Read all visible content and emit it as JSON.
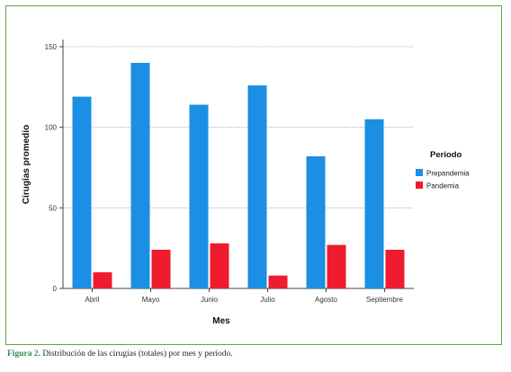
{
  "chart_data": {
    "type": "bar",
    "categories": [
      "Abril",
      "Mayo",
      "Junio",
      "Julio",
      "Agosto",
      "Septiembre"
    ],
    "series": [
      {
        "name": "Prepandemia",
        "values": [
          119,
          140,
          114,
          126,
          82,
          105
        ],
        "color": "#1a8fe3"
      },
      {
        "name": "Pandemia",
        "values": [
          10,
          24,
          28,
          8,
          27,
          24
        ],
        "color": "#ee1c2e"
      }
    ],
    "xlabel": "Mes",
    "ylabel": "Cirugías promedio",
    "ylim": [
      0,
      150
    ],
    "yticks": [
      0,
      50,
      100,
      150
    ],
    "grid": true,
    "legend": {
      "title": "Periodo",
      "placement": "right"
    }
  },
  "caption": {
    "label": "Figura 2.",
    "text": " Distribución de las cirugías (totales) por mes y período."
  }
}
